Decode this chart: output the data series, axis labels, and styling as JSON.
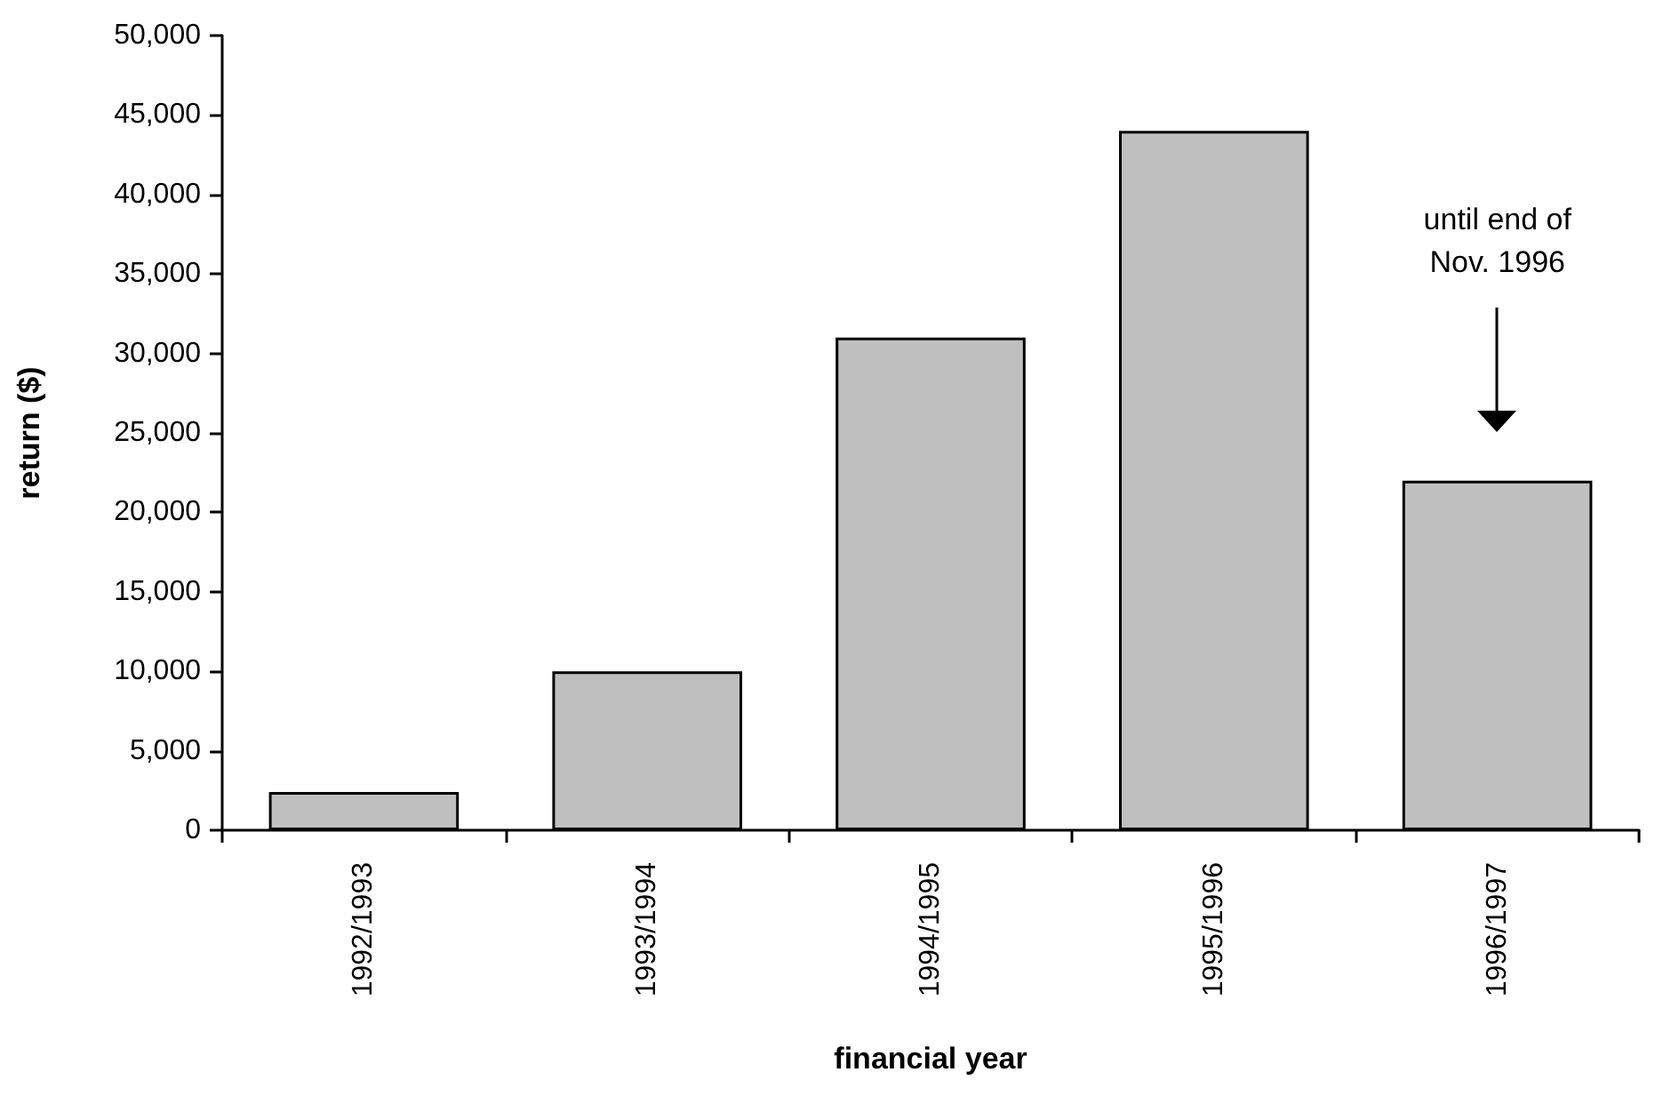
{
  "chart_data": {
    "type": "bar",
    "xlabel": "financial year",
    "ylabel": "return ($)",
    "categories": [
      "1992/1993",
      "1993/1994",
      "1994/1995",
      "1995/1996",
      "1996/1997"
    ],
    "values": [
      2400,
      10000,
      31000,
      44000,
      22000
    ],
    "color": "#bfbfbf",
    "ylim": [
      0,
      50000
    ],
    "yticks": [
      {
        "value": 0,
        "label": "0"
      },
      {
        "value": 5000,
        "label": "5,000"
      },
      {
        "value": 10000,
        "label": "10,000"
      },
      {
        "value": 15000,
        "label": "15,000"
      },
      {
        "value": 20000,
        "label": "20,000"
      },
      {
        "value": 25000,
        "label": "25,000"
      },
      {
        "value": 30000,
        "label": "30,000"
      },
      {
        "value": 35000,
        "label": "35,000"
      },
      {
        "value": 40000,
        "label": "40,000"
      },
      {
        "value": 45000,
        "label": "45,000"
      },
      {
        "value": 50000,
        "label": "50,000"
      }
    ],
    "annotations": [
      "until end of\nNov. 1996"
    ],
    "grid": false
  }
}
